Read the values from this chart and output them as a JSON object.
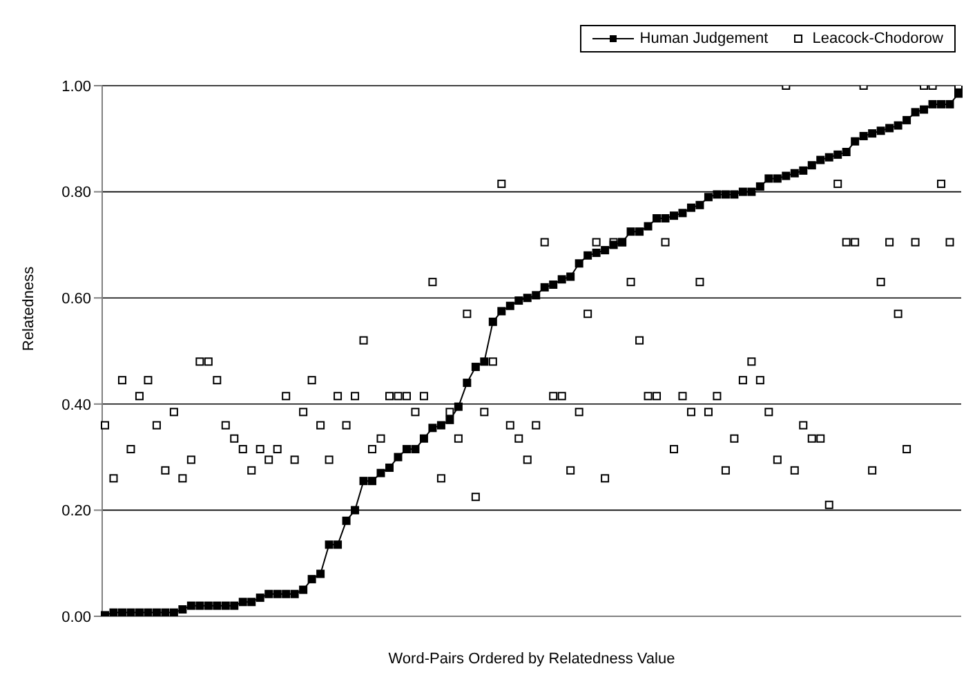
{
  "chart_data": {
    "type": "line",
    "xlabel": "Word-Pairs Ordered by Relatedness Value",
    "ylabel": "Relatedness",
    "categories": [
      null,
      null,
      null,
      null,
      null,
      null,
      null,
      null,
      null,
      null,
      null,
      null,
      null,
      null,
      null,
      null,
      null,
      null,
      null,
      null,
      null,
      null,
      null,
      null,
      null,
      null,
      null,
      null,
      null,
      null,
      null,
      null,
      null,
      null,
      null,
      null,
      null,
      null,
      null,
      null,
      null,
      null,
      null,
      null,
      null,
      null,
      null,
      null,
      null,
      null,
      null,
      null,
      null,
      null,
      null,
      null,
      null,
      null,
      null,
      null,
      null,
      null,
      null,
      null,
      null,
      null,
      null,
      null,
      null,
      null,
      null,
      null,
      null,
      null,
      null,
      null,
      null,
      null,
      null,
      null,
      null,
      null,
      null,
      null,
      null,
      null,
      null,
      null,
      null,
      null,
      null,
      null,
      null,
      null,
      null,
      null,
      null,
      null,
      null,
      null
    ],
    "series": [
      {
        "name": "Human Judgement",
        "color": "#000000",
        "marker": "square",
        "line_style": "solid",
        "values": [
          0.002,
          0.007,
          0.007,
          0.007,
          0.007,
          0.007,
          0.007,
          0.007,
          0.007,
          0.013,
          0.02,
          0.02,
          0.02,
          0.02,
          0.02,
          0.02,
          0.027,
          0.027,
          0.035,
          0.042,
          0.042,
          0.042,
          0.042,
          0.05,
          0.07,
          0.08,
          0.135,
          0.135,
          0.18,
          0.2,
          0.255,
          0.255,
          0.27,
          0.28,
          0.3,
          0.315,
          0.315,
          0.335,
          0.355,
          0.36,
          0.37,
          0.395,
          0.44,
          0.47,
          0.48,
          0.555,
          0.575,
          0.585,
          0.595,
          0.6,
          0.605,
          0.62,
          0.625,
          0.635,
          0.64,
          0.665,
          0.68,
          0.685,
          0.69,
          0.7,
          0.705,
          0.725,
          0.725,
          0.735,
          0.75,
          0.75,
          0.755,
          0.76,
          0.77,
          0.775,
          0.79,
          0.795,
          0.795,
          0.795,
          0.8,
          0.8,
          0.81,
          0.825,
          0.825,
          0.83,
          0.835,
          0.84,
          0.85,
          0.86,
          0.865,
          0.87,
          0.875,
          0.895,
          0.905,
          0.91,
          0.915,
          0.92,
          0.925,
          0.935,
          0.95,
          0.955,
          0.965,
          0.965,
          0.965,
          0.985
        ]
      },
      {
        "name": "Leacock-Chodorow",
        "type": "scatter",
        "color": "#000000",
        "marker": "square",
        "values": [
          0.36,
          0.26,
          0.445,
          0.315,
          0.415,
          0.445,
          0.36,
          0.275,
          0.385,
          0.26,
          0.295,
          0.48,
          0.48,
          0.445,
          0.36,
          0.335,
          0.315,
          0.275,
          0.315,
          0.295,
          0.315,
          0.415,
          0.295,
          0.385,
          0.445,
          0.36,
          0.295,
          0.415,
          0.36,
          0.415,
          0.52,
          0.315,
          0.335,
          0.415,
          0.415,
          0.415,
          0.385,
          0.415,
          0.63,
          0.26,
          0.385,
          0.335,
          0.57,
          0.225,
          0.385,
          0.48,
          0.815,
          0.36,
          0.335,
          0.295,
          0.36,
          0.705,
          0.415,
          0.415,
          0.275,
          0.385,
          0.57,
          0.705,
          0.26,
          0.705,
          0.705,
          0.63,
          0.52,
          0.415,
          0.415,
          0.705,
          0.315,
          0.415,
          0.385,
          0.63,
          0.385,
          0.415,
          0.275,
          0.335,
          0.445,
          0.48,
          0.445,
          0.385,
          0.295,
          1.0,
          0.275,
          0.36,
          0.335,
          0.335,
          0.21,
          0.815,
          0.705,
          0.705,
          1.0,
          0.275,
          0.63,
          0.705,
          0.57,
          0.315,
          0.705,
          1.0,
          1.0,
          0.815,
          0.705,
          1.0
        ]
      }
    ],
    "ylim": [
      0,
      1
    ],
    "yticks": [
      {
        "value": 0,
        "label": "0.00"
      },
      {
        "value": 0.2,
        "label": "0.20"
      },
      {
        "value": 0.4,
        "label": "0.40"
      },
      {
        "value": 0.6,
        "label": "0.60"
      },
      {
        "value": 0.8,
        "label": "0.80"
      },
      {
        "value": 1,
        "label": "1.00"
      }
    ],
    "grid": "y",
    "legend": "top right",
    "tick_labels": "y"
  }
}
